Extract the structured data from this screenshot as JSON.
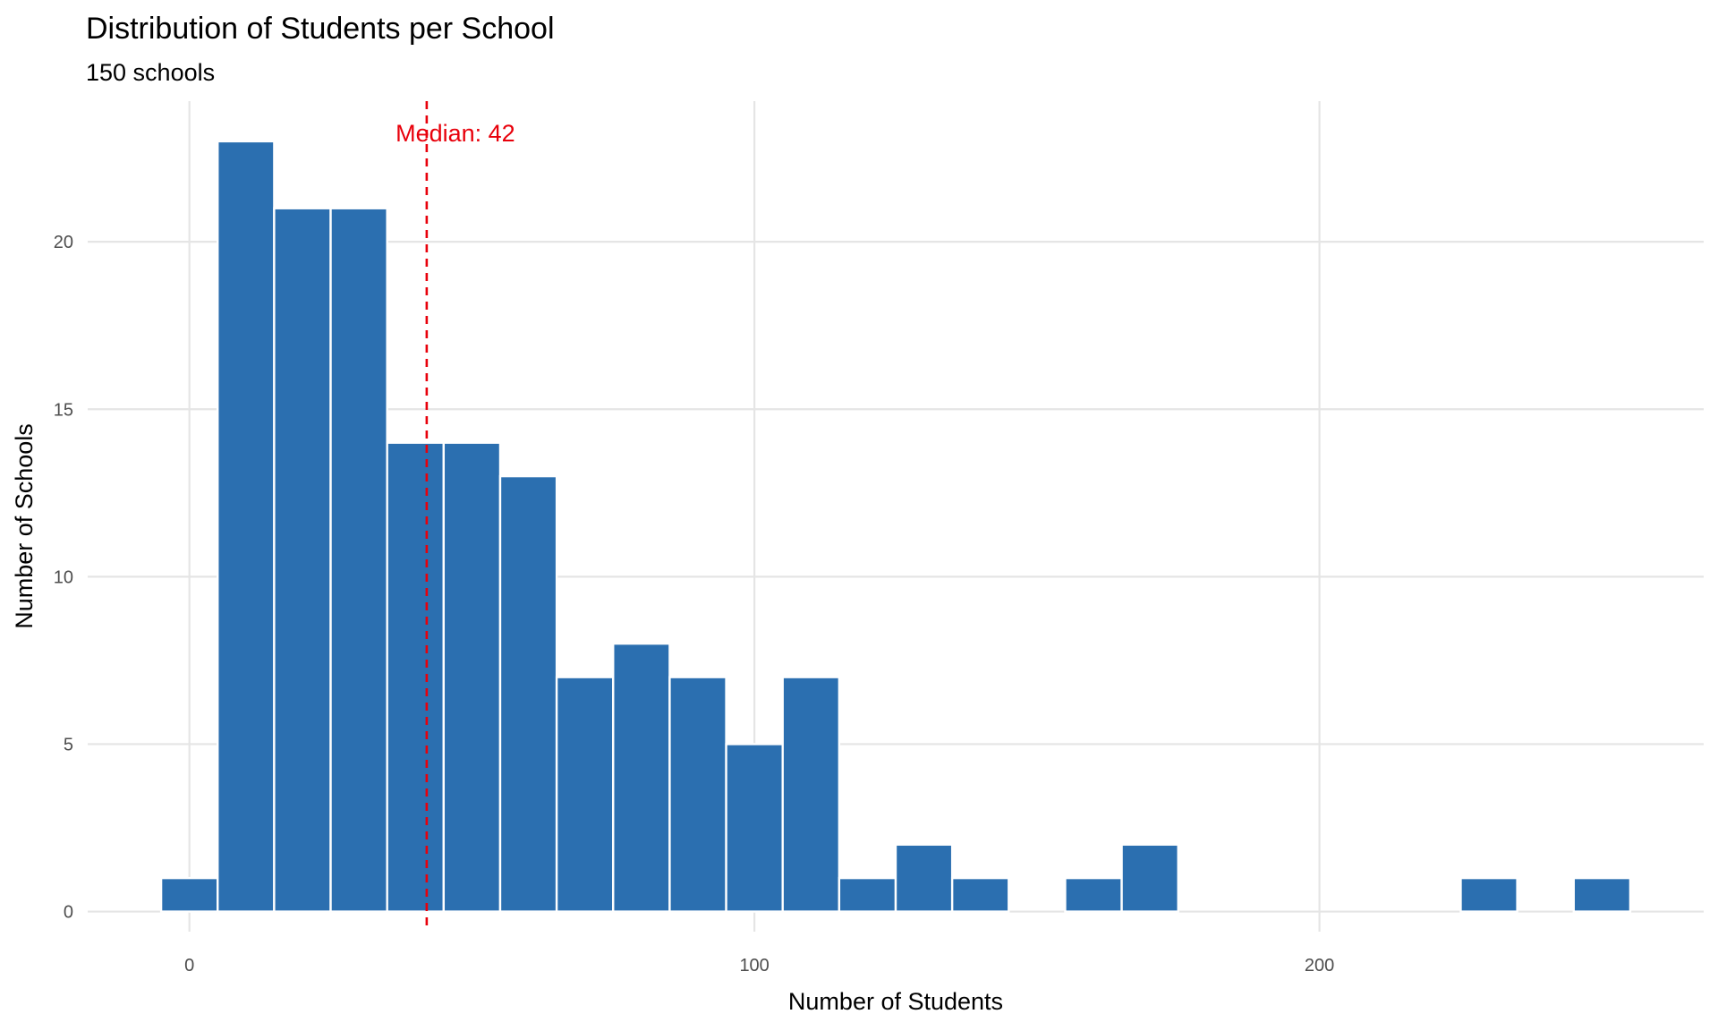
{
  "chart_data": {
    "type": "histogram",
    "title": "Distribution of Students per School",
    "subtitle": "150 schools",
    "x_label": "Number of Students",
    "y_label": "Number of Schools",
    "bins": [
      -5,
      5,
      15,
      25,
      35,
      45,
      55,
      65,
      75,
      85,
      95,
      105,
      115,
      125,
      135,
      145,
      155,
      165,
      175,
      185,
      195,
      205,
      215,
      225,
      235,
      245,
      255
    ],
    "values": [
      1,
      23,
      21,
      21,
      14,
      14,
      13,
      7,
      8,
      7,
      5,
      7,
      1,
      2,
      1,
      0,
      1,
      2,
      0,
      0,
      0,
      0,
      0,
      1,
      0,
      1
    ],
    "color": "#2b6fb0",
    "median": {
      "value": 42,
      "label": "Median: 42"
    },
    "median_color": "#e8000b",
    "xlim": [
      -18,
      268
    ],
    "xticks": [
      0,
      100,
      200
    ],
    "ylim": [
      -0.6,
      24.2
    ],
    "yticks": [
      0,
      5,
      10,
      15,
      20
    ],
    "grid": true
  }
}
